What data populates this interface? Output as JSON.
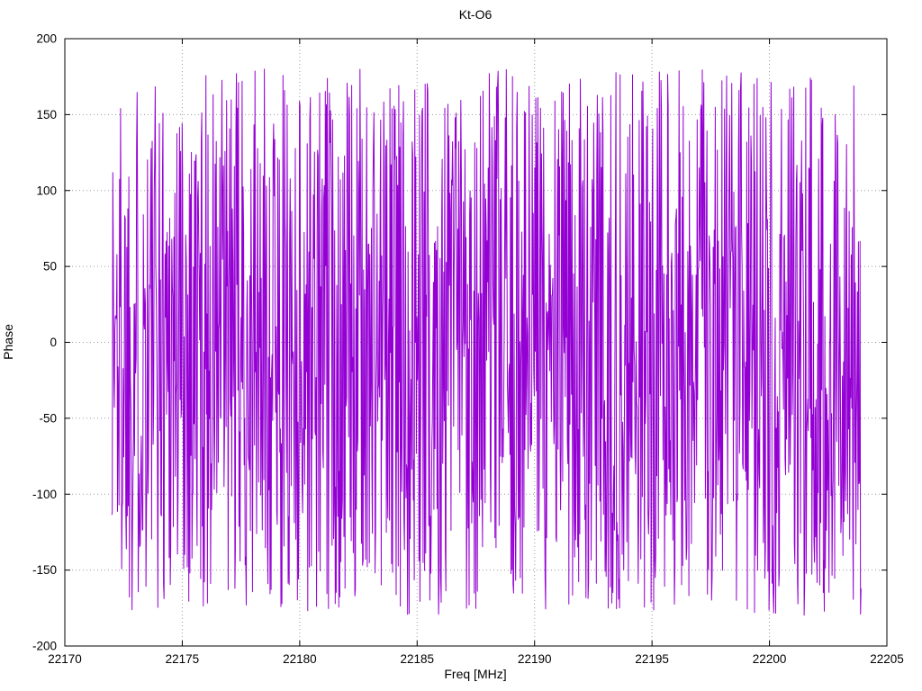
{
  "chart_data": {
    "type": "line",
    "title": "Kt-O6",
    "xlabel": "Freq [MHz]",
    "ylabel": "Phase",
    "xlim": [
      22170,
      22205
    ],
    "ylim": [
      -200,
      200
    ],
    "xticks": [
      22170,
      22175,
      22180,
      22185,
      22190,
      22195,
      22200,
      22205
    ],
    "yticks": [
      -200,
      -150,
      -100,
      -50,
      0,
      50,
      100,
      150,
      200
    ],
    "grid": true,
    "grid_style": "dotted",
    "legend": "none",
    "plot_style": "gnuplot",
    "series": [
      {
        "name": "phase",
        "color": "#9400d3",
        "x_start": 22172.0,
        "x_end": 22203.9,
        "n_points": 1450,
        "y_range": [
          -180,
          180
        ],
        "y_distribution": "uniform-wrapped-phase-noise",
        "seed": 1337,
        "note": "Dense wrapped-phase noise spanning approximately -180 to +180 degrees across the whole frequency span; individual sample values are visually unresolvable and are regenerated deterministically from the seed."
      }
    ]
  },
  "layout_text": {
    "title": "Kt-O6",
    "xlabel": "Freq [MHz]",
    "ylabel": "Phase"
  }
}
